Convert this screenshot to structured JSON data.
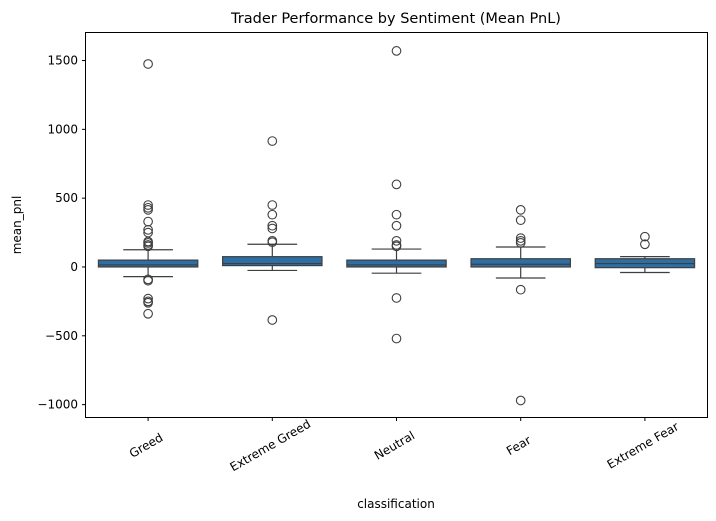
{
  "chart_data": {
    "type": "box",
    "title": "Trader Performance by Sentiment (Mean PnL)",
    "xlabel": "classification",
    "ylabel": "mean_pnl",
    "ylim": [
      -1090,
      1700
    ],
    "yticks": [
      -1000,
      -500,
      0,
      500,
      1000,
      1500
    ],
    "ytick_labels": [
      "−1000",
      "−500",
      "0",
      "500",
      "1000",
      "1500"
    ],
    "grid": false,
    "box_color": "#2d6fa5",
    "categories": [
      "Greed",
      "Extreme Greed",
      "Neutral",
      "Fear",
      "Extreme Fear"
    ],
    "boxes": [
      {
        "q1": 0,
        "median": 15,
        "q3": 50,
        "whisker_low": -70,
        "whisker_high": 125,
        "outliers": [
          1475,
          450,
          430,
          415,
          330,
          270,
          250,
          185,
          175,
          160,
          150,
          -90,
          -100,
          -230,
          -250,
          -260,
          -340
        ]
      },
      {
        "q1": 10,
        "median": 25,
        "q3": 75,
        "whisker_low": -25,
        "whisker_high": 165,
        "outliers": [
          915,
          450,
          380,
          300,
          280,
          190,
          180,
          -385
        ]
      },
      {
        "q1": 0,
        "median": 15,
        "q3": 50,
        "whisker_low": -45,
        "whisker_high": 130,
        "outliers": [
          1570,
          600,
          380,
          300,
          190,
          160,
          150,
          -225,
          -520
        ]
      },
      {
        "q1": 0,
        "median": 20,
        "q3": 60,
        "whisker_low": -80,
        "whisker_high": 145,
        "outliers": [
          415,
          340,
          210,
          190,
          175,
          -165,
          -970
        ]
      },
      {
        "q1": -5,
        "median": 25,
        "q3": 60,
        "whisker_low": -40,
        "whisker_high": 75,
        "outliers": [
          220,
          165
        ]
      }
    ]
  }
}
